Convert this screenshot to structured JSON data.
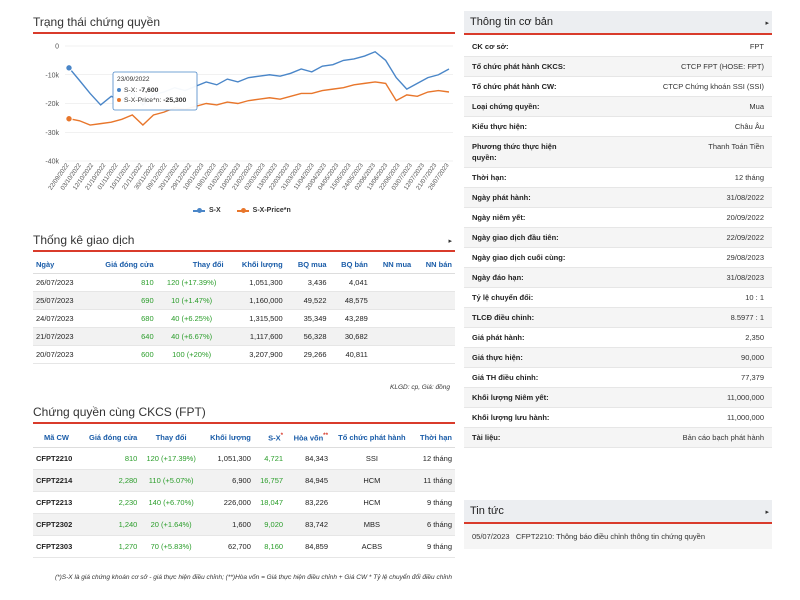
{
  "chart": {
    "title": "Trạng thái chứng quyền",
    "tooltip": {
      "date": "23/09/2022",
      "s1_label": "S-X:",
      "s1_value": "-7,600",
      "s2_label": "S-X-Price*n:",
      "s2_value": "-25,300"
    },
    "legend": [
      "S-X",
      "S-X-Price*n"
    ]
  },
  "chart_data": {
    "type": "line",
    "ylim": [
      -40000,
      0
    ],
    "yticks": [
      "0",
      "-10k",
      "-20k",
      "-30k",
      "-40k"
    ],
    "xticks": [
      "22/09/2022",
      "03/10/2022",
      "12/10/2022",
      "21/10/2022",
      "01/11/2022",
      "10/11/2022",
      "21/11/2022",
      "30/11/2022",
      "09/12/2022",
      "20/12/2022",
      "29/12/2022",
      "10/01/2023",
      "19/01/2023",
      "01/02/2023",
      "10/02/2023",
      "21/02/2023",
      "02/03/2023",
      "13/03/2023",
      "22/03/2023",
      "31/03/2023",
      "11/04/2023",
      "20/04/2023",
      "04/05/2023",
      "15/05/2023",
      "24/05/2023",
      "02/06/2023",
      "13/06/2023",
      "22/06/2023",
      "03/07/2023",
      "12/07/2023",
      "21/07/2023",
      "26/07/2023"
    ],
    "series": [
      {
        "name": "S-X",
        "color": "#4a86c8",
        "values": [
          -7600,
          -12000,
          -16500,
          -20500,
          -17500,
          -19000,
          -16000,
          -20500,
          -17000,
          -16000,
          -14500,
          -15500,
          -14000,
          -12500,
          -13500,
          -11500,
          -12500,
          -11000,
          -10500,
          -10000,
          -10500,
          -9500,
          -8000,
          -9000,
          -7000,
          -6500,
          -5000,
          -4500,
          -3500,
          -2000,
          -5000,
          -11000,
          -15000,
          -13000,
          -11000,
          -10000,
          -8000
        ]
      },
      {
        "name": "S-X-Price*n",
        "color": "#e8762b",
        "values": [
          -25300,
          -26000,
          -27500,
          -27000,
          -26500,
          -25500,
          -24000,
          -27500,
          -24000,
          -23000,
          -21500,
          -22000,
          -21000,
          -20000,
          -20500,
          -19500,
          -20000,
          -19000,
          -18500,
          -18000,
          -18500,
          -17500,
          -16500,
          -16500,
          -15500,
          -15000,
          -14500,
          -13500,
          -13000,
          -12500,
          -13000,
          -19000,
          -17000,
          -17500,
          -16000,
          -15500,
          -16000
        ]
      }
    ]
  },
  "stats": {
    "title": "Thống kê giao dịch",
    "headers": [
      "Ngày",
      "Giá đóng cửa",
      "Thay đổi",
      "Khối lượng",
      "BQ mua",
      "BQ bán",
      "NN mua",
      "NN bán"
    ],
    "rows": [
      [
        "26/07/2023",
        "810",
        "120 (+17.39%)",
        "1,051,300",
        "3,436",
        "4,041",
        "",
        ""
      ],
      [
        "25/07/2023",
        "690",
        "10 (+1.47%)",
        "1,160,000",
        "49,522",
        "48,575",
        "",
        ""
      ],
      [
        "24/07/2023",
        "680",
        "40 (+6.25%)",
        "1,315,500",
        "35,349",
        "43,289",
        "",
        ""
      ],
      [
        "21/07/2023",
        "640",
        "40 (+6.67%)",
        "1,117,600",
        "56,328",
        "30,682",
        "",
        ""
      ],
      [
        "20/07/2023",
        "600",
        "100 (+20%)",
        "3,207,900",
        "29,266",
        "40,811",
        "",
        ""
      ]
    ],
    "note": "KLGD: cp, Giá: đồng"
  },
  "cw": {
    "title": "Chứng quyền cùng CKCS (FPT)",
    "headers": [
      "Mã CW",
      "Giá đóng cửa",
      "Thay đổi",
      "Khối lượng",
      "S-X",
      "Hòa vốn",
      "Tổ chức phát hành",
      "Thời hạn"
    ],
    "header_marks": [
      "*",
      "**"
    ],
    "rows": [
      [
        "CFPT2210",
        "810",
        "120 (+17.39%)",
        "1,051,300",
        "4,721",
        "84,343",
        "SSI",
        "12 tháng"
      ],
      [
        "CFPT2214",
        "2,280",
        "110 (+5.07%)",
        "6,900",
        "16,757",
        "84,945",
        "HCM",
        "11 tháng"
      ],
      [
        "CFPT2213",
        "2,230",
        "140 (+6.70%)",
        "226,000",
        "18,047",
        "83,226",
        "HCM",
        "9 tháng"
      ],
      [
        "CFPT2302",
        "1,240",
        "20 (+1.64%)",
        "1,600",
        "9,020",
        "83,742",
        "MBS",
        "6 tháng"
      ],
      [
        "CFPT2303",
        "1,270",
        "70 (+5.83%)",
        "62,700",
        "8,160",
        "84,859",
        "ACBS",
        "9 tháng"
      ]
    ],
    "footnote": "(*)S-X là giá chứng khoán cơ sở - giá thực hiện điều chỉnh; (**)Hòa vốn = Giá thực hiện điều chỉnh + Giá CW * Tỷ lệ chuyển đổi điều chỉnh"
  },
  "info": {
    "title": "Thông tin cơ bản",
    "rows": [
      [
        "CK cơ sở:",
        "FPT"
      ],
      [
        "Tổ chức phát hành CKCS:",
        "CTCP FPT (HOSE: FPT)"
      ],
      [
        "Tổ chức phát hành CW:",
        "CTCP Chứng khoán SSI (SSI)"
      ],
      [
        "Loại chứng quyền:",
        "Mua"
      ],
      [
        "Kiểu thực hiện:",
        "Châu Âu"
      ],
      [
        "Phương thức thực hiện quyền:",
        "Thanh Toán Tiền"
      ],
      [
        "Thời hạn:",
        "12 tháng"
      ],
      [
        "Ngày phát hành:",
        "31/08/2022"
      ],
      [
        "Ngày niêm yết:",
        "20/09/2022"
      ],
      [
        "Ngày giao dịch đầu tiên:",
        "22/09/2022"
      ],
      [
        "Ngày giao dịch cuối cùng:",
        "29/08/2023"
      ],
      [
        "Ngày đáo hạn:",
        "31/08/2023"
      ],
      [
        "Tỷ lệ chuyển đổi:",
        "10 : 1"
      ],
      [
        "TLCĐ điều chỉnh:",
        "8.5977 : 1"
      ],
      [
        "Giá phát hành:",
        "2,350"
      ],
      [
        "Giá thực hiện:",
        "90,000"
      ],
      [
        "Giá TH điều chỉnh:",
        "77,379"
      ],
      [
        "Khối lượng Niêm yết:",
        "11,000,000"
      ],
      [
        "Khối lượng lưu hành:",
        "11,000,000"
      ],
      [
        "Tài liệu:",
        "Bản cáo bạch phát hành"
      ]
    ]
  },
  "news": {
    "title": "Tin tức",
    "items": [
      {
        "date": "05/07/2023",
        "text": "CFPT2210: Thông báo điều chỉnh thông tin chứng quyền"
      }
    ]
  }
}
